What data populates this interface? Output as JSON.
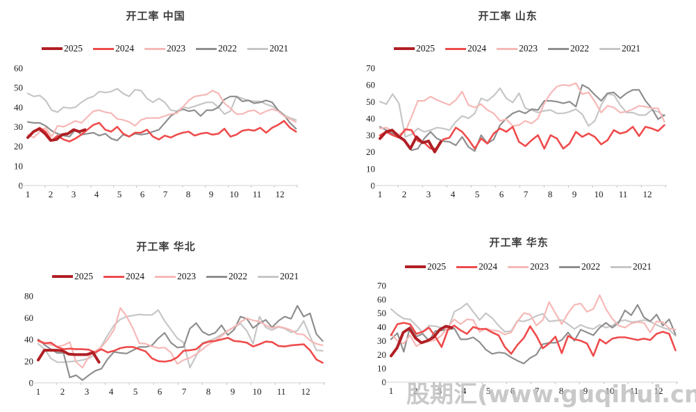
{
  "page": {
    "watermark": "股期汇(www.guqihui.cn)"
  },
  "legend_labels": [
    "2025",
    "2024",
    "2023",
    "2022",
    "2021"
  ],
  "series_colors": {
    "2025": "#b01f24",
    "2024": "#ef4b4b",
    "2023": "#f6b8b6",
    "2022": "#8e8e8e",
    "2021": "#c6c6c6"
  },
  "chart_data": [
    {
      "type": "line",
      "title": "开工率 中国",
      "xlabel": "",
      "ylabel": "",
      "xticks": [
        1,
        2,
        3,
        4,
        5,
        6,
        7,
        8,
        9,
        10,
        11,
        12
      ],
      "xlim": [
        1,
        12.95
      ],
      "ylim": [
        0,
        60
      ],
      "ytick_step": 10,
      "grid": false,
      "legend_position": "top",
      "series": [
        {
          "name": "2021",
          "x0": 1,
          "dx": 0.26,
          "values": [
            47,
            45.5,
            46,
            43.5,
            38.5,
            37.5,
            40,
            39.5,
            40,
            42.5,
            44.5,
            45.5,
            48,
            47.5,
            48,
            49.5,
            47,
            45.5,
            49,
            48.5,
            44.5,
            42.5,
            44.5,
            42.5,
            38.5,
            38,
            40,
            39.5,
            40.5,
            41.5,
            42.5,
            42.5,
            40,
            36.5,
            38,
            45.5,
            44.5,
            43.5,
            43,
            43,
            41.5,
            40.5,
            38.5,
            36,
            34.5,
            33.5
          ]
        },
        {
          "name": "2022",
          "x0": 1,
          "dx": 0.26,
          "values": [
            32.5,
            32,
            32,
            30.5,
            28,
            26.5,
            25.5,
            25,
            28.5,
            26,
            26.5,
            27,
            25.5,
            26.5,
            24,
            23,
            26,
            25,
            26.5,
            26,
            26.5,
            27.5,
            28.5,
            32,
            35.5,
            37.5,
            39,
            38,
            38.5,
            35.5,
            38.5,
            38.5,
            40,
            44,
            45.5,
            45.5,
            43,
            43.5,
            42,
            42.5,
            43.5,
            42.5,
            38.5,
            36,
            32,
            29
          ]
        },
        {
          "name": "2023",
          "x0": 1,
          "dx": 0.26,
          "values": [
            26,
            24.5,
            27.5,
            29.5,
            25,
            30.5,
            30,
            31.5,
            33,
            32,
            35,
            38,
            38.5,
            37.5,
            37,
            34,
            33.5,
            32.5,
            30.5,
            33.5,
            34.5,
            34.5,
            34.5,
            35.5,
            36.5,
            37,
            40,
            43.5,
            45.5,
            46,
            46.5,
            48.5,
            47,
            42,
            39.5,
            36.5,
            36.5,
            38,
            38.5,
            36.5,
            38,
            39,
            38,
            35.5,
            34,
            32.5
          ]
        },
        {
          "name": "2024",
          "x0": 1,
          "dx": 0.26,
          "values": [
            24.5,
            27.5,
            29.5,
            27.5,
            23,
            25.5,
            23.5,
            22.5,
            24,
            26,
            28.5,
            31,
            32,
            28.5,
            27.5,
            30,
            26.5,
            25,
            27,
            27,
            28.5,
            25,
            23.5,
            25.5,
            24.5,
            26,
            27,
            27.5,
            25.5,
            26.5,
            27,
            26,
            26.5,
            29,
            25,
            26,
            28,
            28.5,
            28,
            29.5,
            27,
            29.5,
            31,
            33,
            29.5,
            27.5
          ]
        },
        {
          "name": "2025",
          "x0": 1,
          "dx": 0.25,
          "values": [
            24.5,
            27.5,
            29,
            26.5,
            23,
            23.5,
            26,
            26.5,
            28.5,
            27.5,
            28.5
          ]
        }
      ]
    },
    {
      "type": "line",
      "title": "开工率 山东",
      "xlabel": "",
      "ylabel": "",
      "xticks": [
        1,
        2,
        3,
        4,
        5,
        6,
        7,
        8,
        9,
        10,
        11,
        12
      ],
      "xlim": [
        1,
        12.95
      ],
      "ylim": [
        0,
        70
      ],
      "ytick_step": 10,
      "grid": false,
      "legend_position": "top",
      "series": [
        {
          "name": "2021",
          "x0": 1,
          "dx": 0.26,
          "values": [
            50,
            48.5,
            54.5,
            49,
            29,
            30.5,
            34,
            32,
            33,
            34.5,
            34,
            33,
            38,
            41.5,
            40,
            43,
            52,
            50.5,
            53.5,
            58,
            52,
            49.5,
            55,
            46,
            45,
            43.5,
            44.5,
            45,
            43,
            43,
            44,
            45.5,
            42.5,
            35.5,
            38.5,
            48,
            54.5,
            54,
            48,
            43.5,
            43.5,
            42,
            42,
            45,
            44,
            41.5
          ]
        },
        {
          "name": "2022",
          "x0": 1,
          "dx": 0.26,
          "values": [
            35,
            33,
            31,
            28.5,
            26.5,
            21,
            22,
            28,
            32,
            28,
            26.5,
            26,
            24,
            29,
            23,
            20.5,
            30,
            25,
            27.5,
            36,
            40,
            43,
            44.5,
            43,
            45.5,
            45,
            50.5,
            50.5,
            50,
            49,
            50,
            47,
            60,
            58,
            54,
            50.5,
            55,
            55.5,
            52,
            55,
            57,
            57,
            50.5,
            46,
            39.5,
            42
          ]
        },
        {
          "name": "2023",
          "x0": 1,
          "dx": 0.26,
          "values": [
            34,
            34.5,
            32.5,
            30.5,
            32,
            41,
            50.5,
            50.5,
            53,
            51,
            49.5,
            48,
            51,
            56,
            48,
            46.5,
            48.5,
            45,
            43,
            38.5,
            39.5,
            35.5,
            36,
            38.5,
            37,
            40,
            49,
            55,
            59,
            60,
            59.5,
            61,
            54.5,
            55.5,
            50,
            43.5,
            47.5,
            46.5,
            43.5,
            44,
            45.5,
            47.5,
            47,
            46,
            46,
            38
          ]
        },
        {
          "name": "2024",
          "x0": 1,
          "dx": 0.26,
          "values": [
            30,
            32,
            30,
            28.5,
            33.5,
            33,
            26.5,
            25.5,
            22,
            22,
            27.5,
            28.5,
            34.5,
            32,
            27.5,
            22,
            28,
            25,
            31,
            34,
            32,
            35,
            26,
            23.5,
            27,
            30,
            22,
            30,
            28,
            22,
            25,
            32,
            29,
            31,
            29,
            24.5,
            27,
            33,
            31,
            32,
            35,
            29.5,
            35,
            34,
            32.5,
            36
          ]
        },
        {
          "name": "2025",
          "x0": 1,
          "dx": 0.25,
          "values": [
            28,
            32,
            33,
            29.5,
            27,
            22,
            29,
            25.5,
            26.5,
            20,
            26
          ]
        }
      ]
    },
    {
      "type": "line",
      "title": "开工率 华北",
      "xlabel": "",
      "ylabel": "",
      "xticks": [
        1,
        2,
        3,
        4,
        5,
        6,
        7,
        8,
        9,
        10,
        11,
        12
      ],
      "xlim": [
        1,
        12.95
      ],
      "ylim": [
        0,
        80
      ],
      "ytick_step": 20,
      "grid": false,
      "legend_position": "top",
      "series": [
        {
          "name": "2021",
          "x0": 1,
          "dx": 0.26,
          "values": [
            36,
            31,
            22.5,
            19,
            19,
            19.5,
            20,
            21,
            22.5,
            26,
            34,
            44,
            53,
            58.5,
            61,
            62,
            63,
            62.5,
            62.5,
            67,
            57,
            49,
            41,
            37,
            14,
            25,
            37,
            38.5,
            41,
            44.5,
            48,
            51,
            54.5,
            48,
            36,
            61,
            51,
            48.5,
            51.5,
            50,
            46.5,
            48,
            57,
            43,
            30,
            29.5
          ]
        },
        {
          "name": "2022",
          "x0": 1,
          "dx": 0.26,
          "values": [
            40,
            35,
            31,
            27.5,
            27.5,
            5,
            7,
            2.5,
            7,
            11,
            13,
            22,
            28.5,
            27.5,
            27,
            30,
            33,
            33,
            34.5,
            41,
            46,
            37,
            32.5,
            33,
            50,
            55,
            47,
            44,
            46,
            53,
            44,
            49,
            61,
            59,
            50.5,
            55,
            58,
            51,
            57,
            61,
            59,
            71,
            61,
            64,
            45,
            38.5
          ]
        },
        {
          "name": "2023",
          "x0": 1,
          "dx": 0.26,
          "values": [
            38,
            36.5,
            35,
            33.5,
            34.5,
            37.5,
            19,
            14,
            24,
            29,
            33,
            40,
            49,
            69,
            61,
            50,
            36.5,
            36,
            33.5,
            32,
            32.5,
            28,
            17.5,
            21,
            23,
            26.5,
            31,
            35.5,
            39,
            43,
            48,
            51.5,
            56,
            59.5,
            57.5,
            56.5,
            53,
            50.5,
            52,
            50.5,
            48.5,
            45,
            44.5,
            39,
            36,
            34.5
          ]
        },
        {
          "name": "2024",
          "x0": 1,
          "dx": 0.26,
          "values": [
            39,
            36.5,
            37,
            33,
            31,
            31.5,
            31,
            31,
            30.5,
            28,
            31,
            28,
            29.5,
            32,
            33,
            33,
            31,
            29,
            22.5,
            20,
            19.5,
            20.5,
            23.5,
            29.5,
            30,
            31,
            36,
            38,
            38.5,
            40,
            41.5,
            38.5,
            38,
            37,
            33.5,
            35.5,
            38,
            37.5,
            34,
            33.5,
            34.5,
            35,
            35.5,
            30,
            21.5,
            18.5
          ]
        },
        {
          "name": "2025",
          "x0": 1,
          "dx": 0.25,
          "values": [
            21,
            30,
            30,
            30,
            29.5,
            26.5,
            26,
            26,
            26,
            28,
            19
          ]
        }
      ]
    },
    {
      "type": "line",
      "title": "开工率 华东",
      "xlabel": "",
      "ylabel": "",
      "xticks": [
        1,
        2,
        3,
        4,
        5,
        6,
        7,
        8,
        9,
        10,
        11,
        12
      ],
      "xlim": [
        1,
        12.95
      ],
      "ylim": [
        0,
        70
      ],
      "ytick_step": 10,
      "grid": false,
      "legend_position": "top",
      "series": [
        {
          "name": "2021",
          "x0": 1,
          "dx": 0.26,
          "values": [
            53,
            49,
            46,
            45.5,
            41,
            36,
            41,
            40.5,
            39.5,
            38,
            51,
            53.5,
            57,
            51,
            45,
            50,
            46.5,
            41,
            36.5,
            37,
            44.5,
            44,
            45.5,
            48,
            49.5,
            44,
            44.5,
            45,
            42,
            38.5,
            41.5,
            39.5,
            38.5,
            41.5,
            39.5,
            41,
            44,
            45,
            43.5,
            44,
            45,
            44,
            41.5,
            39.5,
            38,
            33.5
          ]
        },
        {
          "name": "2022",
          "x0": 1,
          "dx": 0.26,
          "values": [
            31,
            35.5,
            22,
            40,
            33,
            35,
            30,
            37,
            37.5,
            38,
            39,
            31,
            31,
            32.5,
            29,
            23.5,
            20.5,
            21.5,
            21,
            18,
            15.5,
            13.5,
            17.5,
            20,
            27.5,
            28.5,
            28.5,
            30.5,
            36,
            30,
            38,
            36,
            34,
            39.5,
            43,
            39.5,
            43,
            52,
            48.5,
            56,
            47,
            44,
            49,
            41,
            45.5,
            34.5
          ]
        },
        {
          "name": "2023",
          "x0": 1,
          "dx": 0.26,
          "values": [
            35,
            30,
            28,
            34,
            26,
            29,
            29.5,
            30.5,
            34,
            40,
            45.5,
            42,
            45.5,
            45,
            36.5,
            39,
            37.5,
            37,
            34.5,
            36,
            44,
            50,
            49,
            41,
            45,
            58,
            50,
            42,
            50,
            56,
            57,
            51,
            53,
            63,
            53,
            46,
            41,
            39.5,
            42.5,
            43.5,
            43,
            36,
            44,
            43.5,
            39,
            38
          ]
        },
        {
          "name": "2024",
          "x0": 1,
          "dx": 0.26,
          "values": [
            34,
            42,
            43,
            42,
            35,
            36.5,
            39.5,
            33,
            25.5,
            38,
            41,
            37.5,
            35,
            40,
            38.5,
            38.5,
            36,
            34,
            25.5,
            20.5,
            27,
            32,
            40.5,
            33.5,
            24.5,
            28,
            33,
            21,
            33.5,
            31,
            30,
            28,
            19,
            31,
            28,
            31.5,
            32.5,
            32.5,
            31.5,
            30.5,
            31.5,
            30.5,
            35,
            36.5,
            35,
            23
          ]
        },
        {
          "name": "2025",
          "x0": 1,
          "dx": 0.25,
          "values": [
            19,
            25,
            36,
            39,
            32,
            28.5,
            30,
            32.5,
            38,
            40.5,
            39.5
          ]
        }
      ]
    }
  ]
}
